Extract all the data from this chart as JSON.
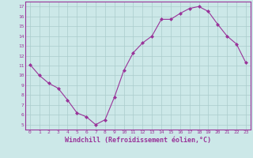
{
  "x": [
    0,
    1,
    2,
    3,
    4,
    5,
    6,
    7,
    8,
    9,
    10,
    11,
    12,
    13,
    14,
    15,
    16,
    17,
    18,
    19,
    20,
    21,
    22,
    23
  ],
  "y": [
    11.1,
    10.0,
    9.2,
    8.7,
    7.5,
    6.2,
    5.8,
    5.0,
    5.5,
    7.8,
    10.5,
    12.3,
    13.3,
    14.0,
    15.7,
    15.7,
    16.3,
    16.8,
    17.0,
    16.5,
    15.2,
    14.0,
    13.2,
    11.3
  ],
  "line_color": "#993399",
  "marker": "D",
  "marker_size": 2,
  "bg_color": "#cce8e8",
  "grid_color": "#aacccc",
  "xlabel": "Windchill (Refroidissement éolien,°C)",
  "xlabel_fontsize": 6,
  "ytick_min": 5,
  "ytick_max": 17,
  "xtick_labels": [
    "0",
    "1",
    "2",
    "3",
    "4",
    "5",
    "6",
    "7",
    "8",
    "9",
    "10",
    "11",
    "12",
    "13",
    "14",
    "15",
    "16",
    "17",
    "18",
    "19",
    "20",
    "21",
    "22",
    "23"
  ],
  "ylim": [
    4.5,
    17.5
  ],
  "xlim": [
    -0.5,
    23.5
  ]
}
